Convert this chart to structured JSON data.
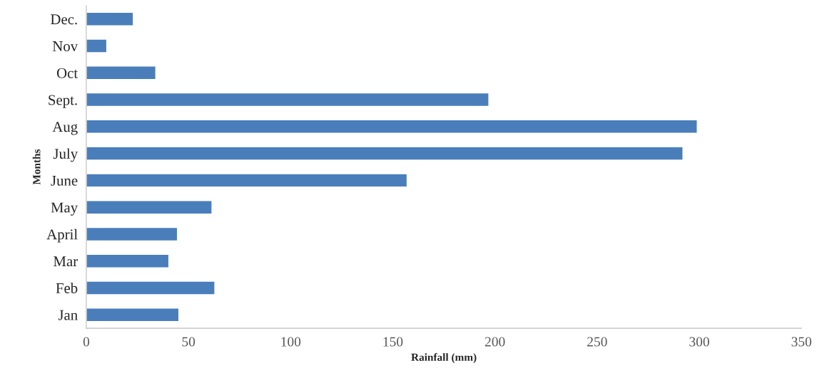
{
  "chart_data": {
    "type": "bar",
    "orientation": "horizontal",
    "xlabel": "Rainfall (mm)",
    "ylabel": "Months",
    "categories": [
      "Dec.",
      "Nov",
      "Oct",
      "Sept.",
      "Aug",
      "July",
      "June",
      "May",
      "April",
      "Mar",
      "Feb",
      "Jan"
    ],
    "values": [
      23,
      10,
      34,
      197,
      299,
      292,
      157,
      61.5,
      44.6,
      40.4,
      62.9,
      45.3
    ],
    "color": "#4a7ebb",
    "xlim": [
      0,
      350
    ],
    "xticks": [
      0,
      50,
      100,
      150,
      200,
      250,
      300,
      350
    ],
    "grid": false,
    "legend": false
  }
}
